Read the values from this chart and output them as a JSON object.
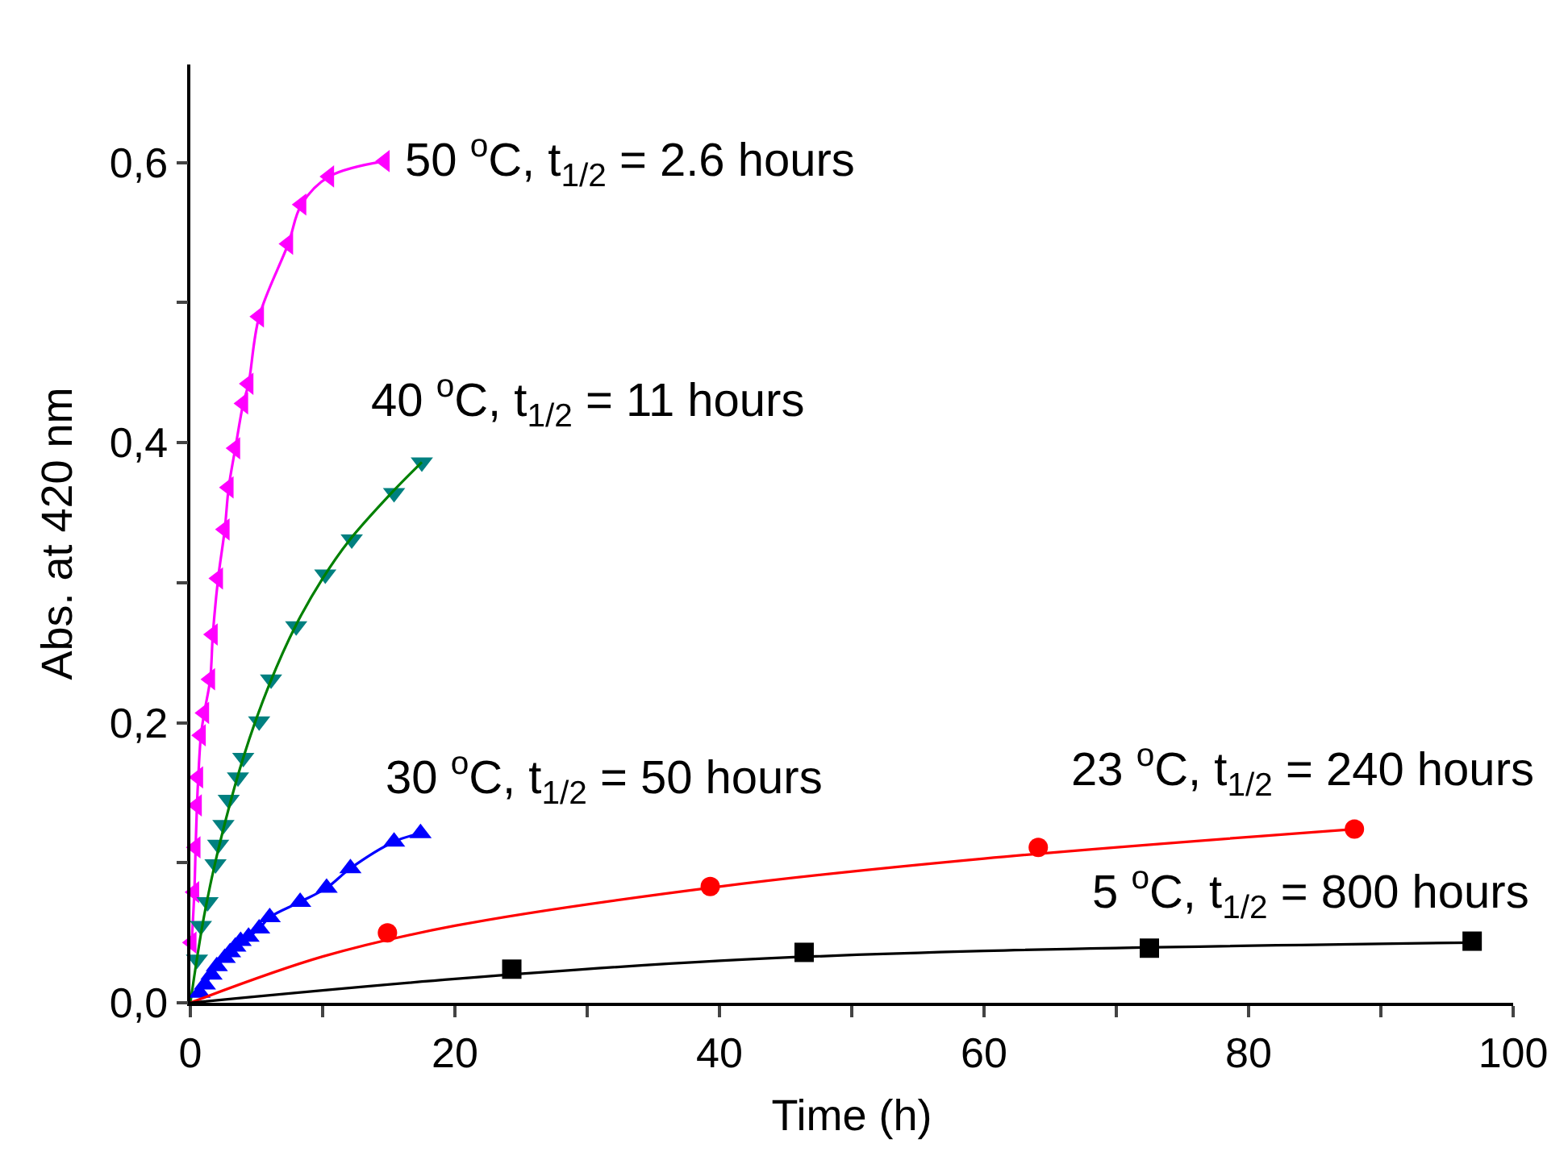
{
  "chart_data": {
    "type": "scatter",
    "xlabel": "Time (h)",
    "ylabel": "Abs. at 420 nm",
    "xlim": [
      0,
      100
    ],
    "ylim": [
      0,
      0.67
    ],
    "xticks": [
      0,
      {
        "value": 10,
        "label": null
      },
      20,
      {
        "value": 30,
        "label": null
      },
      40,
      {
        "value": 50,
        "label": null
      },
      60,
      {
        "value": 70,
        "label": null
      },
      80,
      {
        "value": 90,
        "label": null
      },
      100
    ],
    "yticks": [
      {
        "value": 0,
        "label": "0,0"
      },
      {
        "value": 0.1,
        "label": null
      },
      {
        "value": 0.2,
        "label": "0,2"
      },
      {
        "value": 0.3,
        "label": null
      },
      {
        "value": 0.4,
        "label": "0,4"
      },
      {
        "value": 0.5,
        "label": null
      },
      {
        "value": 0.6,
        "label": "0,6"
      }
    ],
    "legend": false,
    "series": [
      {
        "type": "line",
        "name": "50 $^{o}$C, t$_{1/2}$ = 2.6 hours",
        "marker": "triangle-left",
        "color": "#ff00ff",
        "x": [
          0.1,
          0.3,
          0.4,
          0.5,
          0.6,
          0.8,
          1.05,
          1.5,
          1.7,
          2.1,
          2.6,
          2.9,
          3.4,
          4.0,
          4.4,
          5.2,
          7.4,
          8.4,
          10.5,
          14.7
        ],
        "values": [
          0.043,
          0.079,
          0.111,
          0.141,
          0.161,
          0.191,
          0.207,
          0.231,
          0.263,
          0.303,
          0.338,
          0.368,
          0.396,
          0.428,
          0.442,
          0.49,
          0.542,
          0.57,
          0.59,
          0.601
        ]
      },
      {
        "name": "40 $^{o}$C, t$_{1/2}$ = 11 hours",
        "marker": "triangle-down",
        "color": "#008080",
        "x": [
          0.5,
          0.8,
          1.3,
          1.9,
          2.1,
          2.5,
          2.9,
          3.6,
          4.0,
          5.2,
          6.1,
          8.0,
          10.2,
          12.2,
          15.4,
          17.5
        ],
        "values": [
          0.031,
          0.055,
          0.072,
          0.099,
          0.113,
          0.127,
          0.145,
          0.161,
          0.175,
          0.201,
          0.231,
          0.269,
          0.306,
          0.331,
          0.364,
          0.386
        ]
      },
      {
        "type": "line",
        "marker": "none",
        "color": "#008000",
        "x": [
          0,
          1,
          2,
          4,
          6,
          8,
          10,
          12,
          15,
          17.5
        ],
        "values": [
          0,
          0.06,
          0.105,
          0.175,
          0.228,
          0.27,
          0.303,
          0.33,
          0.362,
          0.386
        ]
      },
      {
        "type": "line",
        "name": "30 $^{o}$C, t$_{1/2}$ = 50 hours",
        "marker": "triangle-up",
        "color": "#0000ff",
        "x": [
          0.7,
          1.1,
          1.6,
          2.0,
          2.6,
          3.0,
          3.4,
          3.8,
          4.4,
          5.2,
          6.0,
          8.3,
          10.3,
          12.1,
          15.4,
          17.4
        ],
        "values": [
          0.007,
          0.013,
          0.02,
          0.026,
          0.032,
          0.036,
          0.04,
          0.044,
          0.047,
          0.053,
          0.061,
          0.072,
          0.082,
          0.096,
          0.115,
          0.121
        ]
      },
      {
        "name": "23 $^{o}$C, t$_{1/2}$ = 240 hours",
        "marker": "circle",
        "color": "#ff0000",
        "x": [
          14.9,
          39.3,
          64.1,
          88.0
        ],
        "values": [
          0.05,
          0.083,
          0.111,
          0.124
        ]
      },
      {
        "type": "line",
        "marker": "none",
        "color": "#ff0000",
        "x": [
          0,
          10,
          20,
          40,
          60,
          88
        ],
        "values": [
          0,
          0.033,
          0.055,
          0.083,
          0.103,
          0.124
        ]
      },
      {
        "name": "5 $^{o}$C, t$_{1/2}$ = 800 hours",
        "marker": "square",
        "color": "#000000",
        "x": [
          24.3,
          46.4,
          72.5,
          96.9
        ],
        "values": [
          0.024,
          0.036,
          0.039,
          0.044
        ]
      },
      {
        "type": "line",
        "marker": "none",
        "color": "#000000",
        "x": [
          0,
          20,
          40,
          60,
          96.9
        ],
        "values": [
          0,
          0.017,
          0.03,
          0.037,
          0.043
        ]
      }
    ]
  }
}
